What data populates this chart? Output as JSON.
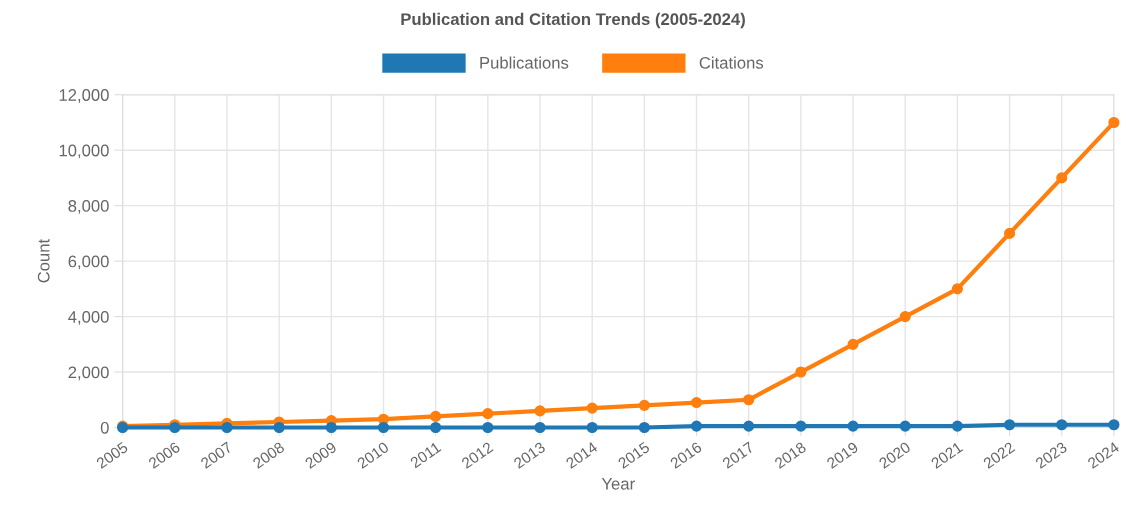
{
  "chart_data": {
    "type": "line",
    "title": "Publication and Citation Trends (2005-2024)",
    "xlabel": "Year",
    "ylabel": "Count",
    "categories": [
      "2005",
      "2006",
      "2007",
      "2008",
      "2009",
      "2010",
      "2011",
      "2012",
      "2013",
      "2014",
      "2015",
      "2016",
      "2017",
      "2018",
      "2019",
      "2020",
      "2021",
      "2022",
      "2023",
      "2024"
    ],
    "series": [
      {
        "name": "Publications",
        "color": "#1f77b4",
        "values": [
          0,
          0,
          0,
          0,
          0,
          0,
          0,
          0,
          0,
          0,
          0,
          50,
          50,
          50,
          50,
          50,
          50,
          100,
          100,
          100
        ]
      },
      {
        "name": "Citations",
        "color": "#ff7f0e",
        "values": [
          50,
          100,
          150,
          200,
          250,
          300,
          400,
          500,
          600,
          700,
          800,
          900,
          1000,
          2000,
          3000,
          4000,
          5000,
          7000,
          9000,
          11000
        ]
      }
    ],
    "ylim": [
      0,
      12000
    ],
    "yticks": [
      {
        "value": 0,
        "label": "0"
      },
      {
        "value": 2000,
        "label": "2,000"
      },
      {
        "value": 4000,
        "label": "4,000"
      },
      {
        "value": 6000,
        "label": "6,000"
      },
      {
        "value": 8000,
        "label": "8,000"
      },
      {
        "value": 10000,
        "label": "10,000"
      },
      {
        "value": 12000,
        "label": "12,000"
      }
    ],
    "grid": true,
    "legend": "top",
    "marker": "circle",
    "line_style": "solid"
  }
}
